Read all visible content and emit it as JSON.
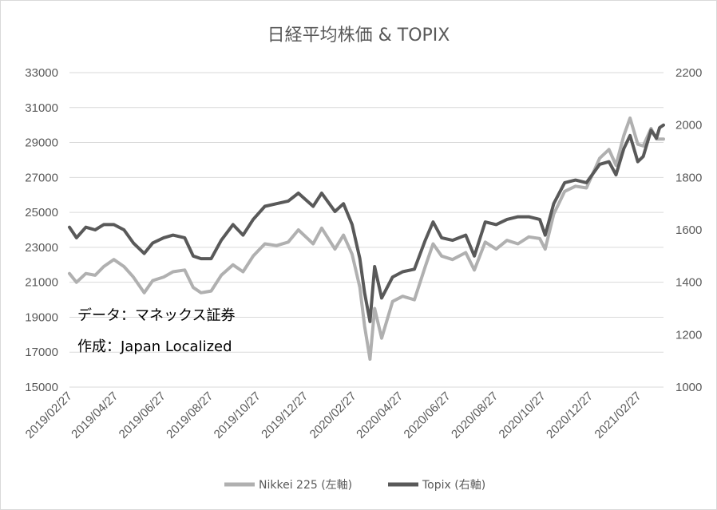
{
  "chart_data": {
    "type": "line",
    "title": "日経平均株価 & TOPIX",
    "y_left": {
      "min": 15000,
      "max": 33000,
      "ticks": [
        "33000",
        "31000",
        "29000",
        "27000",
        "25000",
        "23000",
        "21000",
        "19000",
        "17000",
        "15000"
      ]
    },
    "y_right": {
      "min": 1000,
      "max": 2200,
      "ticks": [
        "2200",
        "2000",
        "1800",
        "1600",
        "1400",
        "1200",
        "1000"
      ]
    },
    "x_ticks": [
      "2019/02/27",
      "2019/04/27",
      "2019/06/27",
      "2019/08/27",
      "2019/10/27",
      "2019/12/27",
      "2020/02/27",
      "2020/04/27",
      "2020/06/27",
      "2020/08/27",
      "2020/10/27",
      "2020/12/27",
      "2021/02/27"
    ],
    "grid": true,
    "legend_position": "bottom",
    "series": [
      {
        "name": "Nikkei 225 (左軸)",
        "axis": "left",
        "color": "#b0b0b0",
        "points": [
          [
            "2019-02-27",
            21500
          ],
          [
            "2019-03-08",
            21000
          ],
          [
            "2019-03-20",
            21500
          ],
          [
            "2019-04-01",
            21400
          ],
          [
            "2019-04-12",
            21900
          ],
          [
            "2019-04-25",
            22300
          ],
          [
            "2019-05-08",
            21900
          ],
          [
            "2019-05-20",
            21300
          ],
          [
            "2019-06-03",
            20400
          ],
          [
            "2019-06-14",
            21100
          ],
          [
            "2019-06-28",
            21300
          ],
          [
            "2019-07-10",
            21600
          ],
          [
            "2019-07-25",
            21700
          ],
          [
            "2019-08-05",
            20700
          ],
          [
            "2019-08-15",
            20400
          ],
          [
            "2019-08-28",
            20500
          ],
          [
            "2019-09-10",
            21400
          ],
          [
            "2019-09-25",
            22000
          ],
          [
            "2019-10-08",
            21600
          ],
          [
            "2019-10-21",
            22500
          ],
          [
            "2019-11-05",
            23200
          ],
          [
            "2019-11-20",
            23100
          ],
          [
            "2019-12-05",
            23300
          ],
          [
            "2019-12-18",
            24000
          ],
          [
            "2020-01-06",
            23200
          ],
          [
            "2020-01-17",
            24100
          ],
          [
            "2020-02-03",
            22900
          ],
          [
            "2020-02-14",
            23700
          ],
          [
            "2020-02-25",
            22600
          ],
          [
            "2020-03-06",
            20700
          ],
          [
            "2020-03-12",
            18500
          ],
          [
            "2020-03-19",
            16600
          ],
          [
            "2020-03-25",
            19500
          ],
          [
            "2020-04-03",
            17800
          ],
          [
            "2020-04-17",
            19900
          ],
          [
            "2020-04-30",
            20200
          ],
          [
            "2020-05-15",
            20000
          ],
          [
            "2020-05-29",
            21900
          ],
          [
            "2020-06-08",
            23200
          ],
          [
            "2020-06-19",
            22500
          ],
          [
            "2020-07-03",
            22300
          ],
          [
            "2020-07-20",
            22700
          ],
          [
            "2020-07-31",
            21700
          ],
          [
            "2020-08-14",
            23300
          ],
          [
            "2020-08-28",
            22900
          ],
          [
            "2020-09-11",
            23400
          ],
          [
            "2020-09-25",
            23200
          ],
          [
            "2020-10-09",
            23600
          ],
          [
            "2020-10-23",
            23500
          ],
          [
            "2020-10-30",
            22900
          ],
          [
            "2020-11-10",
            24900
          ],
          [
            "2020-11-24",
            26200
          ],
          [
            "2020-12-08",
            26500
          ],
          [
            "2020-12-22",
            26400
          ],
          [
            "2021-01-08",
            28100
          ],
          [
            "2021-01-20",
            28600
          ],
          [
            "2021-01-29",
            27700
          ],
          [
            "2021-02-08",
            29400
          ],
          [
            "2021-02-16",
            30400
          ],
          [
            "2021-02-26",
            28900
          ],
          [
            "2021-03-05",
            28800
          ],
          [
            "2021-03-15",
            29800
          ],
          [
            "2021-03-22",
            29200
          ],
          [
            "2021-03-26",
            29200
          ],
          [
            "2021-03-31",
            29200
          ]
        ]
      },
      {
        "name": "Topix (右軸)",
        "axis": "right",
        "color": "#595959",
        "points": [
          [
            "2019-02-27",
            1610
          ],
          [
            "2019-03-08",
            1570
          ],
          [
            "2019-03-20",
            1610
          ],
          [
            "2019-04-01",
            1600
          ],
          [
            "2019-04-12",
            1620
          ],
          [
            "2019-04-25",
            1620
          ],
          [
            "2019-05-08",
            1600
          ],
          [
            "2019-05-20",
            1550
          ],
          [
            "2019-06-03",
            1510
          ],
          [
            "2019-06-14",
            1550
          ],
          [
            "2019-06-28",
            1570
          ],
          [
            "2019-07-10",
            1580
          ],
          [
            "2019-07-25",
            1570
          ],
          [
            "2019-08-05",
            1500
          ],
          [
            "2019-08-15",
            1490
          ],
          [
            "2019-08-28",
            1490
          ],
          [
            "2019-09-10",
            1560
          ],
          [
            "2019-09-25",
            1620
          ],
          [
            "2019-10-08",
            1580
          ],
          [
            "2019-10-21",
            1640
          ],
          [
            "2019-11-05",
            1690
          ],
          [
            "2019-11-20",
            1700
          ],
          [
            "2019-12-05",
            1710
          ],
          [
            "2019-12-18",
            1740
          ],
          [
            "2020-01-06",
            1690
          ],
          [
            "2020-01-17",
            1740
          ],
          [
            "2020-02-03",
            1670
          ],
          [
            "2020-02-14",
            1700
          ],
          [
            "2020-02-25",
            1620
          ],
          [
            "2020-03-06",
            1490
          ],
          [
            "2020-03-12",
            1360
          ],
          [
            "2020-03-19",
            1250
          ],
          [
            "2020-03-25",
            1460
          ],
          [
            "2020-04-03",
            1340
          ],
          [
            "2020-04-17",
            1420
          ],
          [
            "2020-04-30",
            1440
          ],
          [
            "2020-05-15",
            1450
          ],
          [
            "2020-05-29",
            1560
          ],
          [
            "2020-06-08",
            1630
          ],
          [
            "2020-06-19",
            1570
          ],
          [
            "2020-07-03",
            1560
          ],
          [
            "2020-07-20",
            1580
          ],
          [
            "2020-07-31",
            1500
          ],
          [
            "2020-08-14",
            1630
          ],
          [
            "2020-08-28",
            1620
          ],
          [
            "2020-09-11",
            1640
          ],
          [
            "2020-09-25",
            1650
          ],
          [
            "2020-10-09",
            1650
          ],
          [
            "2020-10-23",
            1640
          ],
          [
            "2020-10-30",
            1580
          ],
          [
            "2020-11-10",
            1700
          ],
          [
            "2020-11-24",
            1780
          ],
          [
            "2020-12-08",
            1790
          ],
          [
            "2020-12-22",
            1780
          ],
          [
            "2021-01-08",
            1850
          ],
          [
            "2021-01-20",
            1860
          ],
          [
            "2021-01-29",
            1810
          ],
          [
            "2021-02-08",
            1910
          ],
          [
            "2021-02-16",
            1960
          ],
          [
            "2021-02-26",
            1860
          ],
          [
            "2021-03-05",
            1880
          ],
          [
            "2021-03-15",
            1980
          ],
          [
            "2021-03-22",
            1950
          ],
          [
            "2021-03-26",
            1990
          ],
          [
            "2021-03-31",
            2000
          ]
        ]
      }
    ],
    "annotations": [
      "データ：マネックス証券",
      "作成：Japan Localized"
    ]
  }
}
